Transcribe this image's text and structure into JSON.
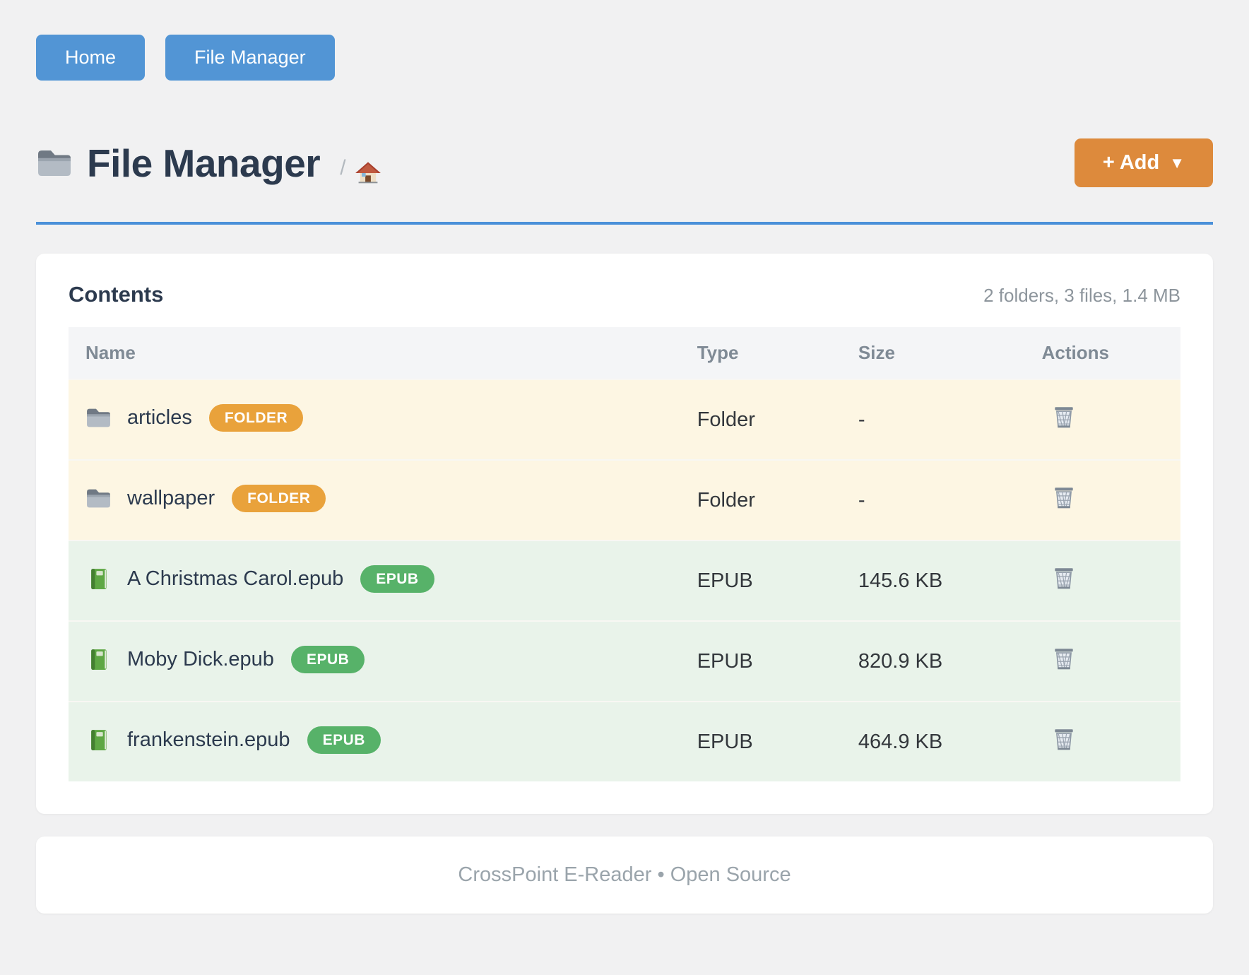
{
  "theme": {
    "accent_blue": "#4a90d9",
    "nav_button_blue": "#5295d5",
    "add_button_orange": "#dd8a3c",
    "badge_folder": "#e9a23b",
    "badge_epub": "#57b269",
    "row_folder_bg": "#fdf6e3",
    "row_file_bg": "#e9f3ea",
    "heading_navy": "#2c3a4e",
    "page_bg": "#f1f1f2"
  },
  "nav": {
    "buttons": [
      {
        "id": "home",
        "label": "Home"
      },
      {
        "id": "file-manager",
        "label": "File Manager"
      }
    ]
  },
  "header": {
    "icon": "folder-icon",
    "title": "File Manager",
    "breadcrumb_separator": "/",
    "breadcrumb_home_icon": "house-icon",
    "add_button": {
      "label": "+ Add",
      "caret": "▼"
    }
  },
  "contents": {
    "title": "Contents",
    "summary": "2 folders, 3 files, 1.4 MB",
    "table": {
      "columns": [
        "Name",
        "Type",
        "Size",
        "Actions"
      ],
      "action_icon": "trash-icon",
      "rows": [
        {
          "kind": "folder",
          "icon": "folder-icon",
          "name": "articles",
          "badge": "FOLDER",
          "type": "Folder",
          "size": "-"
        },
        {
          "kind": "folder",
          "icon": "folder-icon",
          "name": "wallpaper",
          "badge": "FOLDER",
          "type": "Folder",
          "size": "-"
        },
        {
          "kind": "file",
          "icon": "book-epub-icon",
          "name": "A Christmas Carol.epub",
          "badge": "EPUB",
          "type": "EPUB",
          "size": "145.6 KB"
        },
        {
          "kind": "file",
          "icon": "book-epub-icon",
          "name": "Moby Dick.epub",
          "badge": "EPUB",
          "type": "EPUB",
          "size": "820.9 KB"
        },
        {
          "kind": "file",
          "icon": "book-epub-icon",
          "name": "frankenstein.epub",
          "badge": "EPUB",
          "type": "EPUB",
          "size": "464.9 KB"
        }
      ]
    }
  },
  "footer": {
    "text": "CrossPoint E-Reader • Open Source"
  }
}
